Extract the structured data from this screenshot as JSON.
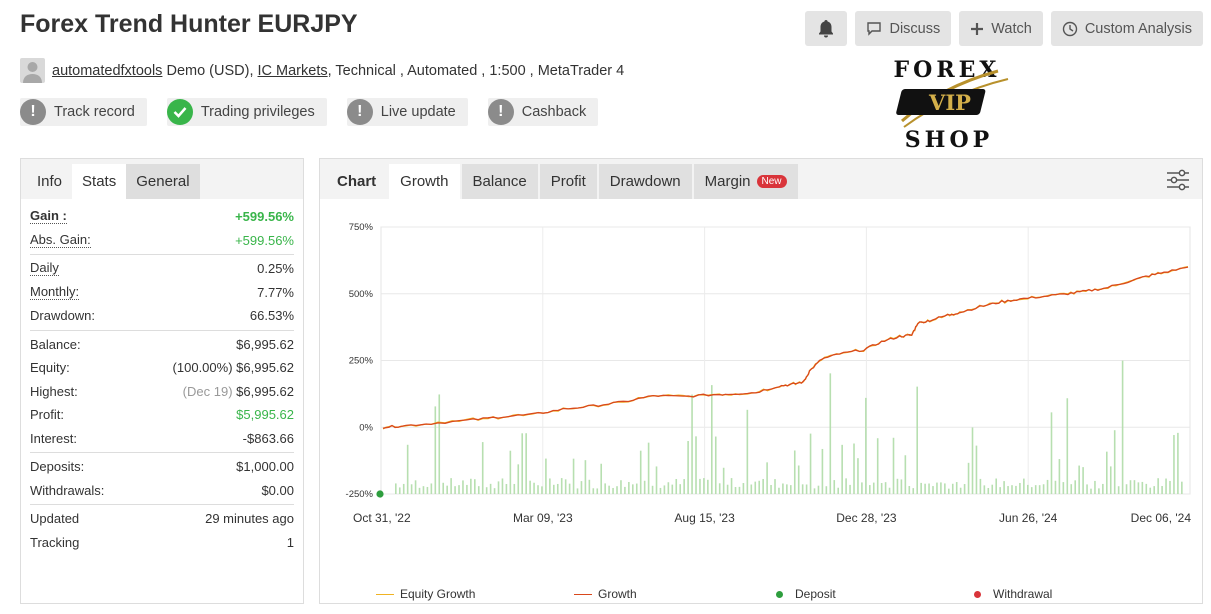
{
  "header": {
    "title": "Forex Trend Hunter EURJPY",
    "buttons": {
      "discuss": "Discuss",
      "watch": "Watch",
      "custom": "Custom Analysis"
    }
  },
  "meta": {
    "user": "automatedfxtools",
    "account": "Demo (USD),",
    "broker": "IC Markets",
    "rest": ", Technical , Automated , 1:500 , MetaTrader 4"
  },
  "badges": [
    "Track record",
    "Trading privileges",
    "Live update",
    "Cashback"
  ],
  "logo": {
    "line1": "FOREX",
    "line2": "VIP",
    "line3": "SHOP"
  },
  "left_tabs": [
    "Info",
    "Stats",
    "General"
  ],
  "stats": {
    "gain": {
      "k": "Gain :",
      "v": "+599.56%"
    },
    "abs_gain": {
      "k": "Abs. Gain:",
      "v": "+599.56%"
    },
    "daily": {
      "k": "Daily",
      "v": "0.25%"
    },
    "monthly": {
      "k": "Monthly:",
      "v": "7.77%"
    },
    "drawdown": {
      "k": "Drawdown:",
      "v": "66.53%"
    },
    "balance": {
      "k": "Balance:",
      "v": "$6,995.62"
    },
    "equity": {
      "k": "Equity:",
      "pre": "(100.00%)",
      "v": "$6,995.62"
    },
    "highest": {
      "k": "Highest:",
      "pre": "(Dec 19)",
      "v": "$6,995.62"
    },
    "profit": {
      "k": "Profit:",
      "v": "$5,995.62"
    },
    "interest": {
      "k": "Interest:",
      "v": "-$863.66"
    },
    "deposits": {
      "k": "Deposits:",
      "v": "$1,000.00"
    },
    "withdrawals": {
      "k": "Withdrawals:",
      "v": "$0.00"
    },
    "updated": {
      "k": "Updated",
      "v": "29 minutes ago"
    },
    "tracking": {
      "k": "Tracking",
      "v": "1"
    }
  },
  "right_tabs": {
    "chart": "Chart",
    "growth": "Growth",
    "balance": "Balance",
    "profit": "Profit",
    "drawdown": "Drawdown",
    "margin": "Margin",
    "new": "New"
  },
  "colors": {
    "equity": "#f0b323",
    "growth": "#d9481c",
    "deposit": "#2e9e3e",
    "withdrawal": "#d9343a",
    "bars": "#b7dfb0"
  },
  "chart_data": {
    "type": "line",
    "x_ticks": [
      "Oct 31, '22",
      "Mar 09, '23",
      "Aug 15, '23",
      "Dec 28, '23",
      "Jun 26, '24",
      "Dec 06, '24"
    ],
    "y_ticks": [
      "750%",
      "500%",
      "250%",
      "0%",
      "-250%"
    ],
    "ylim": [
      -250,
      750
    ],
    "legend": [
      "Equity Growth",
      "Growth",
      "Deposit",
      "Withdrawal"
    ],
    "series": [
      {
        "name": "Growth",
        "points": [
          [
            0,
            0
          ],
          [
            0.03,
            5
          ],
          [
            0.08,
            14
          ],
          [
            0.15,
            28
          ],
          [
            0.2,
            40
          ],
          [
            0.25,
            48
          ],
          [
            0.3,
            68
          ],
          [
            0.35,
            80
          ],
          [
            0.4,
            95
          ],
          [
            0.45,
            118
          ],
          [
            0.5,
            115
          ],
          [
            0.55,
            122
          ],
          [
            0.58,
            125
          ],
          [
            0.62,
            130
          ],
          [
            0.66,
            155
          ],
          [
            0.68,
            160
          ],
          [
            0.7,
            170
          ],
          [
            0.71,
            210
          ],
          [
            0.73,
            255
          ],
          [
            0.76,
            275
          ],
          [
            0.8,
            290
          ],
          [
            0.83,
            320
          ],
          [
            0.86,
            340
          ],
          [
            0.88,
            345
          ],
          [
            0.89,
            390
          ],
          [
            0.91,
            400
          ],
          [
            0.94,
            420
          ],
          [
            0.96,
            430
          ],
          [
            1.0,
            455
          ],
          [
            1.03,
            470
          ],
          [
            1.06,
            480
          ],
          [
            1.1,
            490
          ],
          [
            1.14,
            500
          ],
          [
            1.17,
            510
          ],
          [
            1.2,
            520
          ],
          [
            1.24,
            545
          ],
          [
            1.27,
            565
          ],
          [
            1.3,
            580
          ],
          [
            1.34,
            600
          ]
        ]
      },
      {
        "name": "Equity Growth",
        "points": [
          [
            0.2,
            40
          ],
          [
            0.3,
            68
          ],
          [
            0.45,
            118
          ],
          [
            0.71,
            210
          ],
          [
            0.73,
            268
          ],
          [
            0.89,
            390
          ],
          [
            1.1,
            490
          ],
          [
            1.12,
            470
          ],
          [
            1.2,
            520
          ],
          [
            1.24,
            500
          ],
          [
            1.27,
            565
          ],
          [
            1.34,
            600
          ]
        ]
      }
    ],
    "deposits": [
      [
        0,
        0
      ]
    ]
  }
}
